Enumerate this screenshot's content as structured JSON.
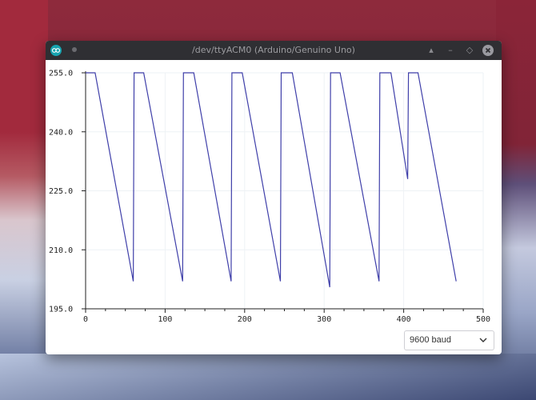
{
  "window": {
    "title": "/dev/ttyACM0 (Arduino/Genuino Uno)",
    "controls": [
      "minimize",
      "maximize",
      "close"
    ]
  },
  "footer": {
    "baud_rate": "9600 baud"
  },
  "colors": {
    "series": "#3f3fa9",
    "titlebar": "#2f2f33",
    "app_icon": "#18a4b0"
  },
  "chart_data": {
    "type": "line",
    "title": "",
    "xlabel": "",
    "ylabel": "",
    "xlim": [
      0,
      500
    ],
    "ylim": [
      195,
      255
    ],
    "x_ticks": [
      "0",
      "100",
      "200",
      "300",
      "400",
      "500"
    ],
    "y_ticks": [
      "255.0",
      "240.0",
      "225.0",
      "210.0",
      "195.0"
    ],
    "grid": true,
    "series": [
      {
        "x": [
          0,
          12,
          60,
          61,
          73,
          122,
          123,
          136,
          183,
          184,
          197,
          245,
          246,
          260,
          307,
          308,
          320,
          369,
          370,
          384,
          405,
          406,
          418,
          466
        ],
        "y": [
          255,
          255,
          202,
          255,
          255,
          202,
          255,
          255,
          202,
          255,
          255,
          202,
          255,
          255,
          200.5,
          255,
          255,
          202,
          255,
          255,
          228,
          255,
          255,
          202
        ]
      }
    ]
  }
}
